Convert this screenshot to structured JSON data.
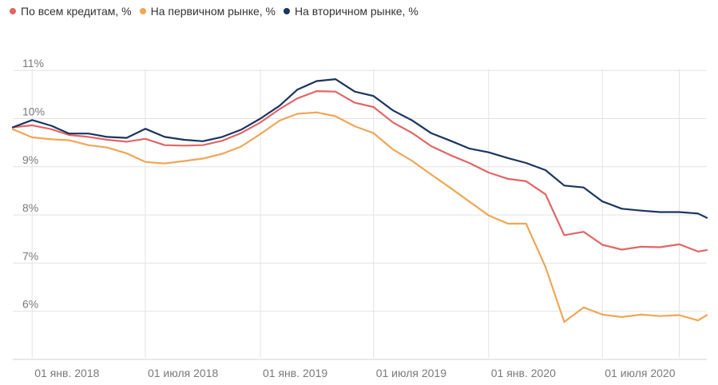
{
  "chart_data": {
    "type": "line",
    "title": "",
    "xlabel": "",
    "ylabel": "",
    "ylim": [
      5,
      11
    ],
    "yticks": [
      "6%",
      "7%",
      "8%",
      "9%",
      "10%",
      "11%"
    ],
    "ytick_values": [
      6,
      7,
      8,
      9,
      10,
      11
    ],
    "x_range": [
      "2017-12-01",
      "2020-12-15"
    ],
    "xtick_values": [
      "2018-01-01",
      "2018-07-01",
      "2019-01-01",
      "2019-07-01",
      "2020-01-01",
      "2020-07-01"
    ],
    "xticks": [
      "01 янв. 2018",
      "01 июля 2018",
      "01 янв. 2019",
      "01 июля 2019",
      "01 янв. 2020",
      "01 июля 2020"
    ],
    "grid": true,
    "legend_position": "top-left",
    "x": [
      "2017-12-01",
      "2018-01-01",
      "2018-02-01",
      "2018-03-01",
      "2018-04-01",
      "2018-05-01",
      "2018-06-01",
      "2018-07-01",
      "2018-08-01",
      "2018-09-01",
      "2018-10-01",
      "2018-11-01",
      "2018-12-01",
      "2019-01-01",
      "2019-02-01",
      "2019-03-01",
      "2019-04-01",
      "2019-05-01",
      "2019-06-01",
      "2019-07-01",
      "2019-08-01",
      "2019-09-01",
      "2019-10-01",
      "2019-11-01",
      "2019-12-01",
      "2020-01-01",
      "2020-02-01",
      "2020-03-01",
      "2020-04-01",
      "2020-05-01",
      "2020-06-01",
      "2020-07-01",
      "2020-08-01",
      "2020-09-01",
      "2020-10-01",
      "2020-11-01",
      "2020-12-01",
      "2020-12-15"
    ],
    "series": [
      {
        "name": "По всем кредитам, %",
        "color": "#e06666",
        "values": [
          9.82,
          9.86,
          9.78,
          9.66,
          9.62,
          9.56,
          9.52,
          9.58,
          9.45,
          9.44,
          9.45,
          9.54,
          9.7,
          9.92,
          10.2,
          10.42,
          10.57,
          10.56,
          10.33,
          10.24,
          9.92,
          9.7,
          9.43,
          9.24,
          9.08,
          8.88,
          8.75,
          8.7,
          8.43,
          7.58,
          7.65,
          7.38,
          7.28,
          7.34,
          7.33,
          7.39,
          7.24,
          7.27
        ]
      },
      {
        "name": "На первичном рынке, %",
        "color": "#f0a656",
        "values": [
          9.78,
          9.61,
          9.57,
          9.55,
          9.45,
          9.4,
          9.28,
          9.1,
          9.07,
          9.12,
          9.17,
          9.27,
          9.42,
          9.68,
          9.96,
          10.1,
          10.13,
          10.05,
          9.84,
          9.7,
          9.36,
          9.12,
          8.84,
          8.56,
          8.28,
          7.99,
          7.82,
          7.82,
          6.92,
          5.78,
          6.08,
          5.93,
          5.88,
          5.93,
          5.9,
          5.92,
          5.81,
          5.92
        ]
      },
      {
        "name": "На вторичном рынке, %",
        "color": "#1b3460",
        "values": [
          9.82,
          9.97,
          9.85,
          9.69,
          9.69,
          9.62,
          9.6,
          9.79,
          9.62,
          9.56,
          9.53,
          9.62,
          9.77,
          10.0,
          10.27,
          10.6,
          10.78,
          10.82,
          10.56,
          10.47,
          10.17,
          9.96,
          9.7,
          9.54,
          9.38,
          9.3,
          9.18,
          9.08,
          8.93,
          8.61,
          8.57,
          8.28,
          8.13,
          8.09,
          8.06,
          8.06,
          8.03,
          7.94
        ]
      }
    ]
  }
}
